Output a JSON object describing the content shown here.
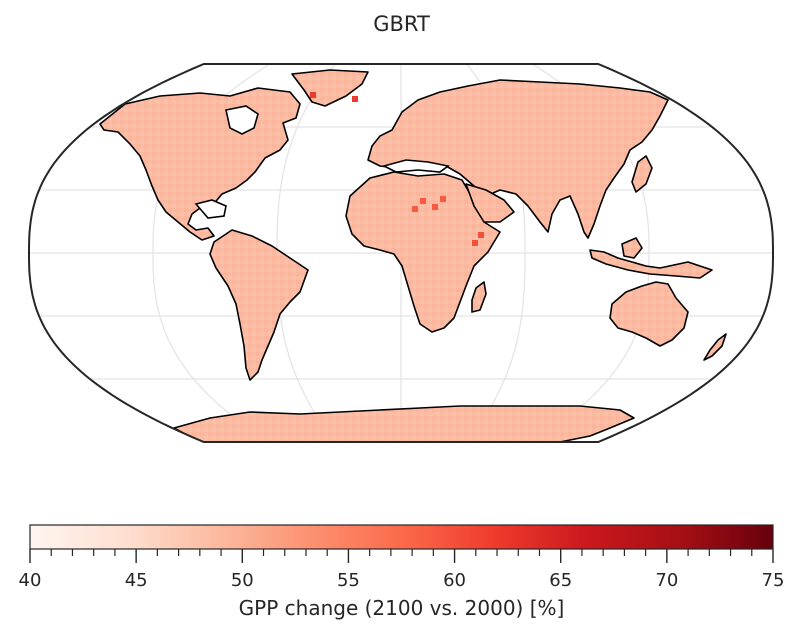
{
  "title": "GBRT",
  "projection": "Robinson",
  "colormap": {
    "name": "Reds",
    "range": [
      40,
      75
    ],
    "ticks": [
      40,
      45,
      50,
      55,
      60,
      65,
      70,
      75
    ],
    "stops": [
      "#fff5f0",
      "#fee0d2",
      "#fcbba1",
      "#fc9272",
      "#fb6a4a",
      "#ef3b2c",
      "#cb181d",
      "#a50f15",
      "#67000d"
    ],
    "label": "GPP change (2100 vs. 2000) [%]"
  },
  "map_data": {
    "typical_value": 51,
    "land_fill": "#fbbba3",
    "high_spots": [
      {
        "region": "Sahara",
        "value": 55
      },
      {
        "region": "Horn of Africa",
        "value": 56
      },
      {
        "region": "Greenland coast",
        "value": 58
      }
    ],
    "gridlines": true
  }
}
